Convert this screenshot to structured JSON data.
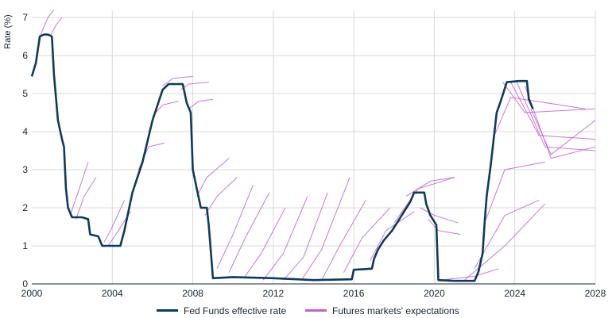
{
  "chart_data": {
    "type": "line",
    "title": "",
    "xlabel": "",
    "ylabel": "Rate (%)",
    "xlim": [
      2000,
      2028
    ],
    "ylim": [
      0,
      7
    ],
    "x_ticks": [
      "2000",
      "2004",
      "2008",
      "2012",
      "2016",
      "2020",
      "2024",
      "2028"
    ],
    "y_ticks": [
      "0",
      "1",
      "2",
      "3",
      "4",
      "5",
      "6",
      "7"
    ],
    "grid": true,
    "legend_position": "bottom",
    "legend": [
      "Fed Funds effective rate",
      "Futures markets' expectations"
    ],
    "colors": {
      "fed_funds": "#0e3b5c",
      "futures": "#c25fd0",
      "grid": "#d9d9d9"
    },
    "series": [
      {
        "name": "Fed Funds effective rate",
        "x": [
          2000.0,
          2000.2,
          2000.4,
          2000.6,
          2000.8,
          2001.0,
          2001.1,
          2001.3,
          2001.5,
          2001.6,
          2001.7,
          2001.8,
          2002.0,
          2002.5,
          2002.8,
          2002.9,
          2003.3,
          2003.5,
          2003.8,
          2004.4,
          2004.6,
          2005.0,
          2005.5,
          2006.0,
          2006.5,
          2006.8,
          2007.5,
          2007.7,
          2007.9,
          2008.0,
          2008.2,
          2008.4,
          2008.7,
          2008.8,
          2008.95,
          2009.0,
          2010.0,
          2012.0,
          2014.0,
          2015.9,
          2016.0,
          2016.9,
          2017.0,
          2017.2,
          2017.5,
          2017.9,
          2018.2,
          2018.5,
          2018.8,
          2019.0,
          2019.5,
          2019.6,
          2019.8,
          2020.1,
          2020.2,
          2021.0,
          2022.0,
          2022.2,
          2022.4,
          2022.5,
          2022.6,
          2022.8,
          2022.95,
          2023.1,
          2023.3,
          2023.6,
          2024.2,
          2024.6,
          2024.7,
          2024.9
        ],
        "y": [
          5.45,
          5.8,
          6.5,
          6.55,
          6.55,
          6.5,
          5.5,
          4.3,
          3.8,
          3.6,
          2.5,
          2.0,
          1.75,
          1.75,
          1.7,
          1.3,
          1.25,
          1.0,
          1.0,
          1.0,
          1.4,
          2.4,
          3.2,
          4.3,
          5.1,
          5.25,
          5.25,
          4.75,
          4.5,
          3.0,
          2.5,
          2.0,
          2.0,
          1.5,
          0.5,
          0.15,
          0.18,
          0.15,
          0.1,
          0.12,
          0.37,
          0.4,
          0.65,
          0.9,
          1.15,
          1.4,
          1.65,
          1.9,
          2.15,
          2.4,
          2.4,
          2.1,
          1.8,
          1.55,
          0.1,
          0.08,
          0.08,
          0.33,
          0.8,
          1.6,
          2.3,
          3.1,
          3.8,
          4.5,
          4.8,
          5.3,
          5.33,
          5.33,
          4.85,
          4.6
        ]
      },
      {
        "name": "Futures markets' expectations",
        "paths": [
          {
            "x": [
              2000.4,
              2000.8,
              2001.1
            ],
            "y": [
              6.5,
              7.0,
              7.2
            ]
          },
          {
            "x": [
              2000.9,
              2001.2,
              2001.5
            ],
            "y": [
              6.5,
              6.8,
              7.0
            ]
          },
          {
            "x": [
              2001.9,
              2002.3,
              2002.8
            ],
            "y": [
              1.8,
              2.4,
              3.2
            ]
          },
          {
            "x": [
              2002.2,
              2002.6,
              2003.2
            ],
            "y": [
              1.7,
              2.3,
              2.8
            ]
          },
          {
            "x": [
              2003.6,
              2004.0,
              2004.6
            ],
            "y": [
              1.1,
              1.5,
              2.2
            ]
          },
          {
            "x": [
              2003.8,
              2004.3,
              2004.9
            ],
            "y": [
              1.0,
              1.4,
              1.9
            ]
          },
          {
            "x": [
              2005.3,
              2005.8,
              2006.6
            ],
            "y": [
              3.0,
              3.6,
              3.7
            ]
          },
          {
            "x": [
              2006.0,
              2006.5,
              2007.3
            ],
            "y": [
              4.4,
              4.7,
              4.8
            ]
          },
          {
            "x": [
              2006.5,
              2007.0,
              2008.0
            ],
            "y": [
              5.2,
              5.4,
              5.45
            ]
          },
          {
            "x": [
              2007.4,
              2007.8,
              2008.8
            ],
            "y": [
              5.1,
              5.25,
              5.3
            ]
          },
          {
            "x": [
              2007.8,
              2008.3,
              2009.0
            ],
            "y": [
              4.6,
              4.8,
              4.85
            ]
          },
          {
            "x": [
              2008.2,
              2008.7,
              2009.8
            ],
            "y": [
              2.3,
              2.8,
              3.3
            ]
          },
          {
            "x": [
              2008.6,
              2009.2,
              2010.2
            ],
            "y": [
              1.8,
              2.3,
              2.8
            ]
          },
          {
            "x": [
              2009.2,
              2010.0,
              2011.0
            ],
            "y": [
              0.4,
              1.3,
              2.6
            ]
          },
          {
            "x": [
              2009.8,
              2010.6,
              2011.8
            ],
            "y": [
              0.3,
              1.2,
              2.4
            ]
          },
          {
            "x": [
              2010.6,
              2011.4,
              2012.6
            ],
            "y": [
              0.2,
              0.8,
              2.0
            ]
          },
          {
            "x": [
              2011.5,
              2012.5,
              2013.7
            ],
            "y": [
              0.1,
              0.8,
              2.3
            ]
          },
          {
            "x": [
              2012.5,
              2013.5,
              2014.7
            ],
            "y": [
              0.1,
              0.7,
              2.4
            ]
          },
          {
            "x": [
              2013.4,
              2014.4,
              2015.8
            ],
            "y": [
              0.1,
              0.9,
              2.8
            ]
          },
          {
            "x": [
              2014.4,
              2015.3,
              2016.6
            ],
            "y": [
              0.1,
              1.0,
              2.2
            ]
          },
          {
            "x": [
              2015.5,
              2016.4,
              2017.8
            ],
            "y": [
              0.3,
              1.2,
              2.0
            ]
          },
          {
            "x": [
              2016.8,
              2017.6,
              2019.0
            ],
            "y": [
              0.6,
              1.4,
              1.9
            ]
          },
          {
            "x": [
              2018.0,
              2019.2,
              2021.0
            ],
            "y": [
              1.6,
              2.5,
              2.8
            ]
          },
          {
            "x": [
              2018.6,
              2019.8,
              2021.0
            ],
            "y": [
              2.3,
              2.7,
              2.8
            ]
          },
          {
            "x": [
              2019.3,
              2020.0,
              2021.2
            ],
            "y": [
              2.0,
              1.8,
              1.6
            ]
          },
          {
            "x": [
              2019.7,
              2020.2,
              2021.3
            ],
            "y": [
              1.7,
              1.4,
              1.3
            ]
          },
          {
            "x": [
              2020.3,
              2022.0,
              2023.2
            ],
            "y": [
              0.1,
              0.2,
              0.4
            ]
          },
          {
            "x": [
              2021.5,
              2023.5,
              2025.5
            ],
            "y": [
              0.1,
              1.0,
              2.1
            ]
          },
          {
            "x": [
              2022.0,
              2023.5,
              2025.2
            ],
            "y": [
              0.4,
              1.8,
              2.2
            ]
          },
          {
            "x": [
              2022.5,
              2023.5,
              2025.5
            ],
            "y": [
              1.6,
              3.0,
              3.2
            ]
          },
          {
            "x": [
              2022.9,
              2023.8,
              2027.5
            ],
            "y": [
              3.8,
              4.9,
              4.6
            ]
          },
          {
            "x": [
              2023.4,
              2024.5,
              2028.0
            ],
            "y": [
              5.3,
              4.5,
              4.6
            ]
          },
          {
            "x": [
              2023.8,
              2025.2,
              2028.0
            ],
            "y": [
              5.3,
              3.9,
              3.8
            ]
          },
          {
            "x": [
              2024.1,
              2025.5,
              2028.0
            ],
            "y": [
              5.3,
              3.6,
              3.5
            ]
          },
          {
            "x": [
              2024.5,
              2025.8,
              2028.0
            ],
            "y": [
              5.2,
              3.3,
              3.6
            ]
          },
          {
            "x": [
              2024.8,
              2025.8,
              2028.0
            ],
            "y": [
              4.6,
              3.4,
              4.3
            ]
          }
        ]
      }
    ]
  }
}
